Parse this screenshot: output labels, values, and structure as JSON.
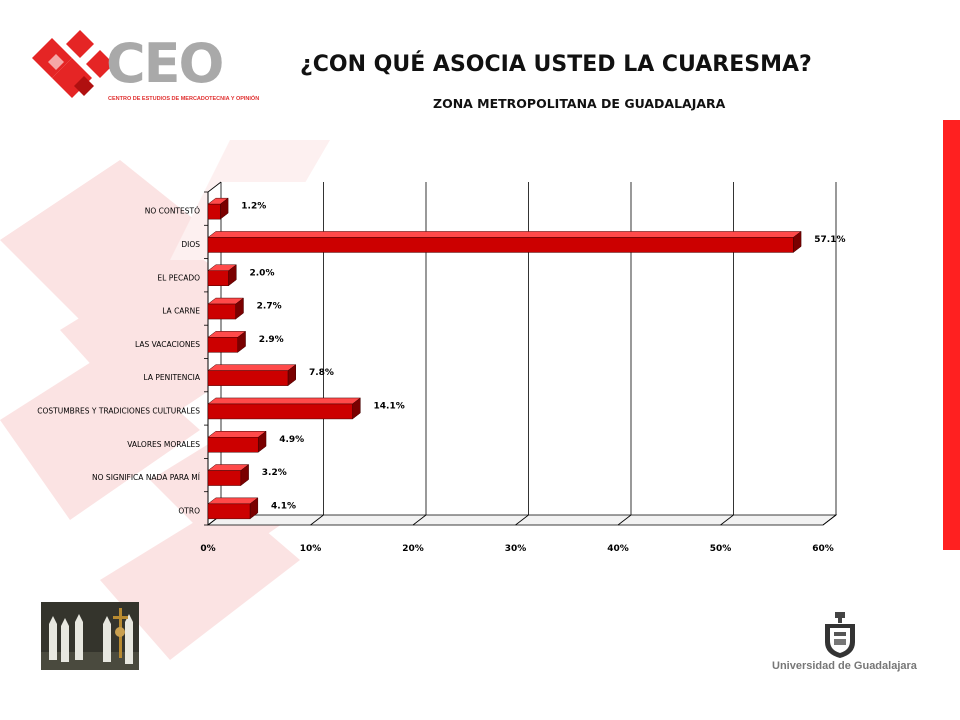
{
  "header": {
    "title": "¿CON QUÉ ASOCIA USTED LA CUARESMA?",
    "subtitle": "ZONA METROPOLITANA DE GUADALAJARA"
  },
  "logo": {
    "text": "CEO",
    "subtext": "CENTRO DE ESTUDIOS DE MERCADOTECNIA Y OPINIÓN"
  },
  "footer": {
    "university": "Universidad de Guadalajara"
  },
  "colors": {
    "bar": "#cc0000",
    "bar_dark": "#7a0000",
    "bar_light": "#ff4a4a",
    "accent": "#ff2020"
  },
  "chart_data": {
    "type": "bar",
    "orientation": "horizontal",
    "categories": [
      "NO CONTESTÓ",
      "DIOS",
      "EL PECADO",
      "LA CARNE",
      "LAS VACACIONES",
      "LA PENITENCIA",
      "COSTUMBRES Y TRADICIONES CULTURALES",
      "VALORES MORALES",
      "NO SIGNIFICA NADA PARA MÍ",
      "OTRO"
    ],
    "values": [
      1.2,
      57.1,
      2.0,
      2.7,
      2.9,
      7.8,
      14.1,
      4.9,
      3.2,
      4.1
    ],
    "value_labels": [
      "1.2%",
      "57.1%",
      "2.0%",
      "2.7%",
      "2.9%",
      "7.8%",
      "14.1%",
      "4.9%",
      "3.2%",
      "4.1%"
    ],
    "x_ticks": [
      "0%",
      "10%",
      "20%",
      "30%",
      "40%",
      "50%",
      "60%"
    ],
    "xlim": [
      0,
      60
    ],
    "grid": true,
    "style": "3d"
  }
}
